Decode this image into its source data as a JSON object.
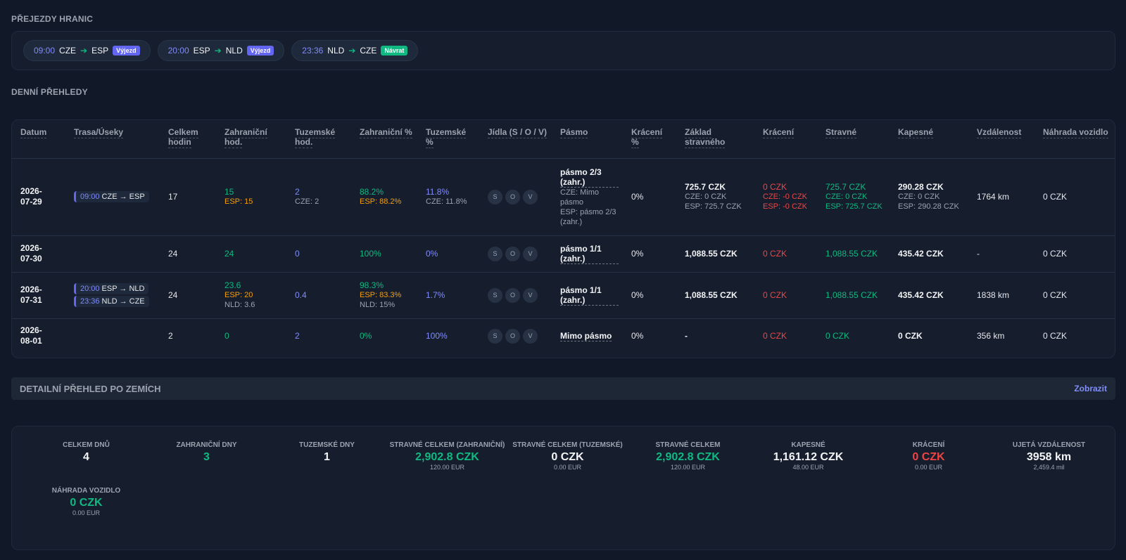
{
  "crossings_title": "PŘEJEZDY HRANIC",
  "crossings": [
    {
      "time": "09:00",
      "from": "CZE",
      "to": "ESP",
      "badge": "Výjezd",
      "type": "out"
    },
    {
      "time": "20:00",
      "from": "ESP",
      "to": "NLD",
      "badge": "Výjezd",
      "type": "out"
    },
    {
      "time": "23:36",
      "from": "NLD",
      "to": "CZE",
      "badge": "Návrat",
      "type": "ret"
    }
  ],
  "daily_title": "DENNÍ PŘEHLEDY",
  "columns": [
    "Datum",
    "Trasa/Úseky",
    "Celkem hodin",
    "Zahraniční hod.",
    "Tuzemské hod.",
    "Zahraniční %",
    "Tuzemské %",
    "Jídla (S / O / V)",
    "Pásmo",
    "Krácení %",
    "Základ stravného",
    "Krácení",
    "Stravné",
    "Kapesné",
    "Vzdálenost",
    "Náhrada vozidlo"
  ],
  "meal_letters": [
    "S",
    "O",
    "V"
  ],
  "rows": [
    {
      "date_a": "2026-",
      "date_b": "07-29",
      "segments": [
        {
          "time": "09:00",
          "route": "CZE → ESP"
        }
      ],
      "total_hours": "17",
      "foreign_hours": "15",
      "foreign_hours_sub": [
        "ESP: 15"
      ],
      "foreign_hours_sub2": "",
      "domestic_hours": "2",
      "domestic_hours_sub": "CZE: 2",
      "foreign_pct": "88.2%",
      "foreign_pct_sub": "ESP: 88.2%",
      "foreign_pct_sub2": "",
      "domestic_pct": "11.8%",
      "domestic_pct_sub": "CZE: 11.8%",
      "zone": "pásmo 2/3 (zahr.)",
      "zone_sub": [
        "CZE: Mimo pásmo",
        "ESP: pásmo 2/3 (zahr.)"
      ],
      "reduction_pct": "0%",
      "base": "725.7 CZK",
      "base_sub": [
        "CZE: 0 CZK",
        "ESP: 725.7 CZK"
      ],
      "reduction": "0 CZK",
      "reduction_sub": [
        "CZE: -0 CZK",
        "ESP: -0 CZK"
      ],
      "allowance": "725.7 CZK",
      "allowance_sub": [
        "CZE: 0 CZK",
        "ESP: 725.7 CZK"
      ],
      "pocket": "290.28 CZK",
      "pocket_sub": [
        "CZE: 0 CZK",
        "ESP: 290.28 CZK"
      ],
      "distance": "1764 km",
      "vehicle": "0 CZK"
    },
    {
      "date_a": "2026-",
      "date_b": "07-30",
      "segments": [],
      "total_hours": "24",
      "foreign_hours": "24",
      "foreign_hours_sub": [],
      "foreign_hours_sub2": "",
      "domestic_hours": "0",
      "domestic_hours_sub": "",
      "foreign_pct": "100%",
      "foreign_pct_sub": "",
      "foreign_pct_sub2": "",
      "domestic_pct": "0%",
      "domestic_pct_sub": "",
      "zone": "pásmo 1/1 (zahr.)",
      "zone_sub": [],
      "reduction_pct": "0%",
      "base": "1,088.55 CZK",
      "base_sub": [],
      "reduction": "0 CZK",
      "reduction_sub": [],
      "allowance": "1,088.55 CZK",
      "allowance_sub": [],
      "pocket": "435.42 CZK",
      "pocket_sub": [],
      "distance": "-",
      "vehicle": "0 CZK"
    },
    {
      "date_a": "2026-",
      "date_b": "07-31",
      "segments": [
        {
          "time": "20:00",
          "route": "ESP → NLD"
        },
        {
          "time": "23:36",
          "route": "NLD → CZE"
        }
      ],
      "total_hours": "24",
      "foreign_hours": "23.6",
      "foreign_hours_sub": [
        "ESP: 20"
      ],
      "foreign_hours_sub2": "NLD: 3.6",
      "domestic_hours": "0.4",
      "domestic_hours_sub": "",
      "foreign_pct": "98.3%",
      "foreign_pct_sub": "ESP: 83.3%",
      "foreign_pct_sub2": "NLD: 15%",
      "domestic_pct": "1.7%",
      "domestic_pct_sub": "",
      "zone": "pásmo 1/1 (zahr.)",
      "zone_sub": [],
      "reduction_pct": "0%",
      "base": "1,088.55 CZK",
      "base_sub": [],
      "reduction": "0 CZK",
      "reduction_sub": [],
      "allowance": "1,088.55 CZK",
      "allowance_sub": [],
      "pocket": "435.42 CZK",
      "pocket_sub": [],
      "distance": "1838 km",
      "vehicle": "0 CZK"
    },
    {
      "date_a": "2026-",
      "date_b": "08-01",
      "segments": [],
      "total_hours": "2",
      "foreign_hours": "0",
      "foreign_hours_sub": [],
      "foreign_hours_sub2": "",
      "domestic_hours": "2",
      "domestic_hours_sub": "",
      "foreign_pct": "0%",
      "foreign_pct_sub": "",
      "foreign_pct_sub2": "",
      "domestic_pct": "100%",
      "domestic_pct_sub": "",
      "zone": "Mimo pásmo",
      "zone_sub": [],
      "reduction_pct": "0%",
      "base": "-",
      "base_sub": [],
      "reduction": "0 CZK",
      "reduction_sub": [],
      "allowance": "0 CZK",
      "allowance_sub": [],
      "pocket": "0 CZK",
      "pocket_sub": [],
      "distance": "356 km",
      "vehicle": "0 CZK"
    }
  ],
  "detail_bar": {
    "label": "DETAILNÍ PŘEHLED PO ZEMÍCH",
    "link": "Zobrazit"
  },
  "summary": [
    {
      "k": "CELKEM DNŮ",
      "v": "4",
      "s": "",
      "color": "white"
    },
    {
      "k": "ZAHRANIČNÍ DNY",
      "v": "3",
      "s": "",
      "color": "green"
    },
    {
      "k": "TUZEMSKÉ DNY",
      "v": "1",
      "s": "",
      "color": "white"
    },
    {
      "k": "STRAVNÉ CELKEM (ZAHRANIČNÍ)",
      "v": "2,902.8 CZK",
      "s": "120.00 EUR",
      "color": "green"
    },
    {
      "k": "STRAVNÉ CELKEM (TUZEMSKÉ)",
      "v": "0 CZK",
      "s": "0.00 EUR",
      "color": "white"
    },
    {
      "k": "STRAVNÉ CELKEM",
      "v": "2,902.8 CZK",
      "s": "120.00 EUR",
      "color": "green"
    },
    {
      "k": "KAPESNÉ",
      "v": "1,161.12 CZK",
      "s": "48.00 EUR",
      "color": "white"
    },
    {
      "k": "KRÁCENÍ",
      "v": "0 CZK",
      "s": "0.00 EUR",
      "color": "red"
    },
    {
      "k": "UJETÁ VZDÁLENOST",
      "v": "3958 km",
      "s": "2,459.4 mil",
      "color": "white"
    },
    {
      "k": "NÁHRADA VOZIDLO",
      "v": "0 CZK",
      "s": "0.00 EUR",
      "color": "green"
    }
  ]
}
